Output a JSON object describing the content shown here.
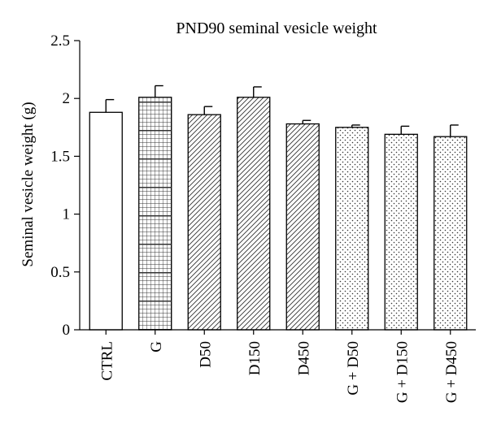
{
  "chart_data": {
    "type": "bar",
    "title": "PND90 seminal vesicle weight",
    "xlabel": "",
    "ylabel": "Seminal vesicle weight (g)",
    "ylim": [
      0,
      2.5
    ],
    "yticks": [
      0,
      0.5,
      1,
      1.5,
      2,
      2.5
    ],
    "ytick_labels": [
      "0",
      "0.5",
      "1",
      "1.5",
      "2",
      "2.5"
    ],
    "grid": false,
    "legend": "none",
    "categories": [
      "CTRL",
      "G",
      "D50",
      "D150",
      "D450",
      "G + D50",
      "G + D150",
      "G + D450"
    ],
    "values": [
      1.88,
      2.01,
      1.86,
      2.01,
      1.78,
      1.75,
      1.69,
      1.67
    ],
    "errors": [
      0.11,
      0.1,
      0.07,
      0.09,
      0.03,
      0.02,
      0.07,
      0.1
    ],
    "patterns": [
      "none",
      "grid",
      "diagonal",
      "diagonal",
      "diagonal",
      "dots",
      "dots",
      "dots"
    ],
    "colors": {
      "bar_fill": "#ffffff",
      "stroke": "#000000",
      "pattern": "#333333"
    }
  }
}
